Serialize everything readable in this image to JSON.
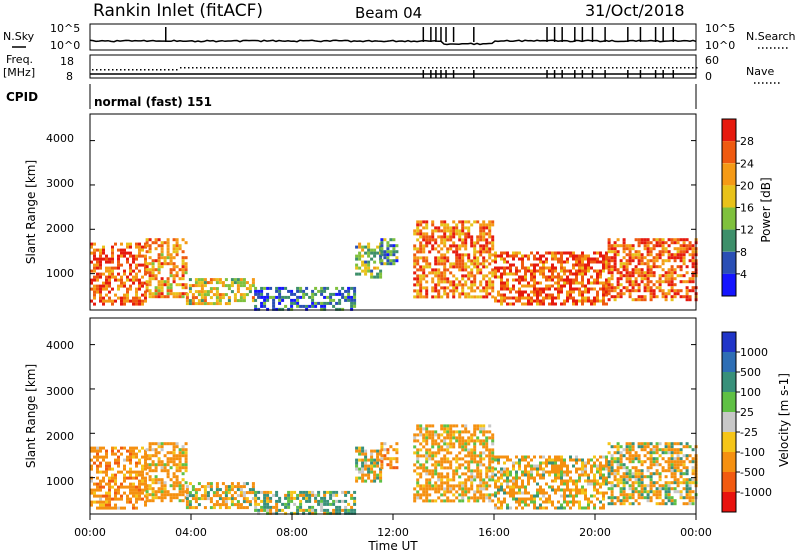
{
  "header": {
    "station": "Rankin Inlet (fitACF)",
    "beam": "Beam 04",
    "date": "31/Oct/2018"
  },
  "top_panel": {
    "left_label": "N.Sky",
    "right_label": "N.Search",
    "y_top": "10^5",
    "y_bottom": "10^0",
    "r_top": "10^5",
    "r_bottom": "10^0"
  },
  "freq_panel": {
    "left_label_1": "Freq.",
    "left_label_2": "[MHz]",
    "right_label": "Nave",
    "y_top": "18",
    "y_bottom": "8",
    "r_top": "60",
    "r_bottom": "0"
  },
  "cpid": {
    "label": "CPID",
    "value": "normal (fast) 151"
  },
  "power_panel": {
    "ylabel": "Slant Range [km]",
    "ytick_labels": [
      "1000",
      "2000",
      "3000",
      "4000"
    ],
    "colorbar_label": "Power [dB]",
    "colorbar_ticks": [
      "4",
      "8",
      "12",
      "16",
      "20",
      "24",
      "28"
    ],
    "colorbar_colors": [
      "#1515ff",
      "#2a4fb5",
      "#3d8f6a",
      "#7fc13d",
      "#e8c21a",
      "#f59a16",
      "#ef5a10",
      "#e61a0e"
    ]
  },
  "velocity_panel": {
    "ylabel": "Slant Range [km]",
    "ytick_labels": [
      "1000",
      "2000",
      "3000",
      "4000"
    ],
    "colorbar_label": "Velocity [m s-1]",
    "colorbar_ticks": [
      "1000",
      "500",
      "100",
      "25",
      "-25",
      "-100",
      "-500",
      "-1000"
    ],
    "colorbar_colors": [
      "#2035c8",
      "#2e6eb5",
      "#38907a",
      "#5fc044",
      "#c8c8c8",
      "#f5c518",
      "#f59010",
      "#f25a10",
      "#e8120e"
    ]
  },
  "x_axis": {
    "title": "Time UT",
    "tick_labels": [
      "00:00",
      "04:00",
      "08:00",
      "12:00",
      "16:00",
      "20:00",
      "00:00"
    ]
  },
  "chart_data": {
    "type": "heatmap",
    "x_unit": "hours UT",
    "x_range": [
      0,
      24
    ],
    "y_range_km": [
      180,
      4600
    ],
    "power_bins_db": [
      4,
      8,
      12,
      16,
      20,
      24,
      28
    ],
    "velocity_bins": [
      1000,
      500,
      100,
      25,
      -25,
      -100,
      -500,
      -1000
    ],
    "echo_regions": [
      {
        "t": [
          0.0,
          2.2
        ],
        "range_km": [
          300,
          1700
        ],
        "power_db": 26,
        "velocity": -300
      },
      {
        "t": [
          2.2,
          3.8
        ],
        "range_km": [
          450,
          1800
        ],
        "power_db": 22,
        "velocity": -200
      },
      {
        "t": [
          3.8,
          6.5
        ],
        "range_km": [
          300,
          900
        ],
        "power_db": 18,
        "velocity": -100
      },
      {
        "t": [
          6.5,
          10.5
        ],
        "range_km": [
          180,
          700
        ],
        "power_db": 8,
        "velocity": 100
      },
      {
        "t": [
          10.5,
          11.5
        ],
        "range_km": [
          900,
          1700
        ],
        "power_db": 14,
        "velocity": -100
      },
      {
        "t": [
          11.5,
          12.2
        ],
        "range_km": [
          1200,
          1800
        ],
        "power_db": 10,
        "velocity": -300
      },
      {
        "t": [
          12.8,
          16.0
        ],
        "range_km": [
          500,
          2200
        ],
        "power_db": 24,
        "velocity": -200
      },
      {
        "t": [
          16.0,
          20.5
        ],
        "range_km": [
          300,
          1500
        ],
        "power_db": 26,
        "velocity": -150
      },
      {
        "t": [
          20.5,
          24.0
        ],
        "range_km": [
          400,
          1800
        ],
        "power_db": 26,
        "velocity": -100
      }
    ]
  }
}
